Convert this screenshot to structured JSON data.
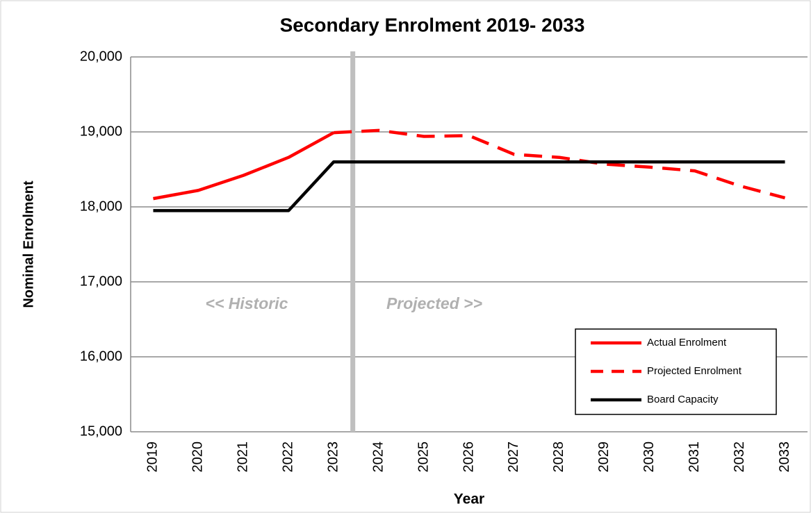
{
  "chart_data": {
    "type": "line",
    "title": "Secondary Enrolment 2019- 2033",
    "x_label": "Year",
    "y_label": "Nominal Enrolment",
    "annotations": [
      "<< Historic",
      "Projected >>"
    ],
    "categories": [
      "2019",
      "2020",
      "2021",
      "2022",
      "2023",
      "2024",
      "2025",
      "2026",
      "2027",
      "2028",
      "2029",
      "2030",
      "2031",
      "2032",
      "2033"
    ],
    "series": [
      {
        "name": "Actual Enrolment",
        "color": "#ff0000",
        "dashed": false,
        "values": [
          18110,
          18220,
          18420,
          18660,
          18990,
          null,
          null,
          null,
          null,
          null,
          null,
          null,
          null,
          null,
          null
        ]
      },
      {
        "name": "Projected Enrolment",
        "color": "#ff0000",
        "dashed": true,
        "values": [
          null,
          null,
          null,
          null,
          18990,
          19020,
          18940,
          18950,
          18700,
          18660,
          18570,
          18530,
          18480,
          18280,
          18120
        ]
      },
      {
        "name": "Board Capacity",
        "color": "#000000",
        "dashed": false,
        "values": [
          17950,
          17950,
          17950,
          17950,
          18600,
          18600,
          18600,
          18600,
          18600,
          18600,
          18600,
          18600,
          18600,
          18600,
          18600
        ]
      }
    ],
    "ylim": [
      15000,
      20000
    ],
    "yticks": [
      {
        "value": 15000,
        "label": "15,000"
      },
      {
        "value": 16000,
        "label": "16,000"
      },
      {
        "value": 17000,
        "label": "17,000"
      },
      {
        "value": 18000,
        "label": "18,000"
      },
      {
        "value": 19000,
        "label": "19,000"
      },
      {
        "value": 20000,
        "label": "20,000"
      }
    ],
    "grid": true,
    "legend": "lower right"
  }
}
